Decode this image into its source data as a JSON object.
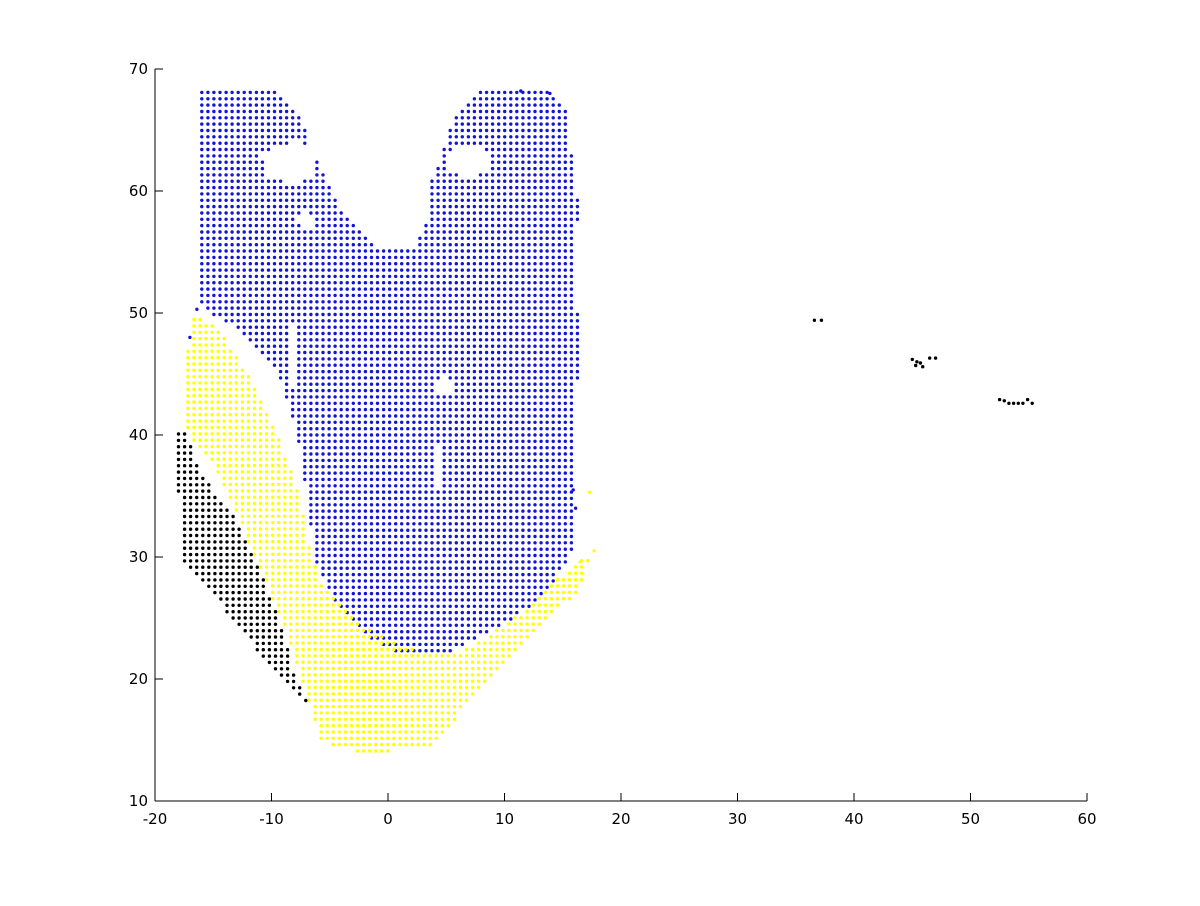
{
  "chart_data": {
    "type": "scatter",
    "title": "",
    "xlabel": "",
    "ylabel": "",
    "xlim": [
      -20,
      60
    ],
    "ylim": [
      10,
      70
    ],
    "grid": false,
    "legend": "none",
    "xticks": [
      -20,
      -10,
      0,
      10,
      20,
      30,
      40,
      50,
      60
    ],
    "yticks": [
      10,
      20,
      30,
      40,
      50,
      60,
      70
    ],
    "marker": "dot",
    "series": [
      {
        "color": "#1414d8",
        "region": {
          "outline": [
            [
              -16.3,
              68.2
            ],
            [
              -9.9,
              68.3
            ],
            [
              -7.9,
              66.5
            ],
            [
              -7.0,
              64.7
            ],
            [
              -5.4,
              61.1
            ],
            [
              -4.0,
              58.6
            ],
            [
              -2.3,
              56.7
            ],
            [
              -0.7,
              55.2
            ],
            [
              0.8,
              55.3
            ],
            [
              2.5,
              55.6
            ],
            [
              3.5,
              58.0
            ],
            [
              3.8,
              61.1
            ],
            [
              4.7,
              63.2
            ],
            [
              5.7,
              66.3
            ],
            [
              8.0,
              68.5
            ],
            [
              11.0,
              68.3
            ],
            [
              14.0,
              68.1
            ],
            [
              15.3,
              66.5
            ],
            [
              15.8,
              62.5
            ],
            [
              16.3,
              59.0
            ],
            [
              16.2,
              55.0
            ],
            [
              16.3,
              47.0
            ],
            [
              16.2,
              40.0
            ],
            [
              16.1,
              34.0
            ],
            [
              16.0,
              31.0
            ],
            [
              15.0,
              29.0
            ],
            [
              12.5,
              26.0
            ],
            [
              9.0,
              24.0
            ],
            [
              5.5,
              22.3
            ],
            [
              3.7,
              21.8
            ],
            [
              0.5,
              22.2
            ],
            [
              -2.0,
              23.5
            ],
            [
              -4.5,
              26.0
            ],
            [
              -6.3,
              30.0
            ],
            [
              -7.0,
              35.0
            ],
            [
              -7.8,
              40.0
            ],
            [
              -9.5,
              45.0
            ],
            [
              -12.0,
              48.0
            ],
            [
              -13.9,
              49.2
            ],
            [
              -16.0,
              50.5
            ],
            [
              -16.3,
              55.0
            ],
            [
              -16.5,
              62.0
            ]
          ],
          "holes": [
            [
              [
                -10.8,
                63.0
              ],
              [
                -8.0,
                64.2
              ],
              [
                -6.3,
                63.3
              ],
              [
                -6.2,
                61.5
              ],
              [
                -8.2,
                60.5
              ],
              [
                -10.6,
                61.3
              ]
            ],
            [
              [
                5.0,
                63.3
              ],
              [
                6.8,
                63.8
              ],
              [
                8.6,
                63.2
              ],
              [
                8.8,
                61.7
              ],
              [
                7.0,
                61.0
              ],
              [
                5.3,
                61.8
              ]
            ],
            [
              [
                -8.0,
                57.8
              ],
              [
                -7.0,
                58.3
              ],
              [
                -6.3,
                57.4
              ],
              [
                -7.1,
                56.7
              ]
            ],
            [
              [
                -8.4,
                48.8
              ],
              [
                -7.9,
                49.0
              ],
              [
                -7.7,
                42.2
              ],
              [
                -8.1,
                41.9
              ]
            ],
            [
              [
                4.1,
                44.6
              ],
              [
                5.3,
                44.9
              ],
              [
                5.5,
                43.5
              ],
              [
                4.3,
                43.2
              ]
            ],
            [
              [
                3.9,
                39.0
              ],
              [
                4.5,
                39.2
              ],
              [
                4.6,
                35.5
              ],
              [
                4.0,
                35.3
              ]
            ]
          ]
        },
        "points": [
          [
            -16.4,
            50.3
          ],
          [
            -17.0,
            48.0
          ],
          [
            15.9,
            35.5
          ],
          [
            16.1,
            34.0
          ],
          [
            13.9,
            68.0
          ],
          [
            11.4,
            68.2
          ]
        ]
      },
      {
        "color": "#ffff00",
        "region": {
          "outline": [
            [
              -17.7,
              42.3
            ],
            [
              -17.2,
              47.0
            ],
            [
              -16.8,
              50.0
            ],
            [
              -14.9,
              49.0
            ],
            [
              -12.6,
              46.0
            ],
            [
              -10.8,
              42.5
            ],
            [
              -9.3,
              39.5
            ],
            [
              -8.2,
              37.0
            ],
            [
              -7.2,
              33.0
            ],
            [
              -6.5,
              30.0
            ],
            [
              -5.5,
              27.5
            ],
            [
              -3.3,
              25.2
            ],
            [
              -0.5,
              23.5
            ],
            [
              2.5,
              22.3
            ],
            [
              5.5,
              22.0
            ],
            [
              8.5,
              23.5
            ],
            [
              11.5,
              25.5
            ],
            [
              13.7,
              27.5
            ],
            [
              16.2,
              29.5
            ],
            [
              17.7,
              30.5
            ],
            [
              16.2,
              27.0
            ],
            [
              13.0,
              24.5
            ],
            [
              10.0,
              21.5
            ],
            [
              7.5,
              19.0
            ],
            [
              5.3,
              16.0
            ],
            [
              3.7,
              14.5
            ],
            [
              0.4,
              14.1
            ],
            [
              -2.8,
              14.1
            ],
            [
              -5.8,
              14.8
            ],
            [
              -6.5,
              17.5
            ],
            [
              -7.5,
              20.0
            ],
            [
              -9.0,
              24.5
            ],
            [
              -11.0,
              29.0
            ],
            [
              -13.0,
              33.5
            ],
            [
              -15.0,
              37.5
            ],
            [
              -17.5,
              40.5
            ]
          ]
        },
        "points": [
          [
            17.3,
            35.3
          ],
          [
            17.7,
            30.5
          ],
          [
            16.5,
            29.6
          ]
        ]
      },
      {
        "color": "#000000",
        "region": {
          "outline": [
            [
              -18.2,
              40.5
            ],
            [
              -17.2,
              40.6
            ],
            [
              -16.5,
              37.8
            ],
            [
              -15.0,
              35.5
            ],
            [
              -13.0,
              33.0
            ],
            [
              -11.0,
              29.0
            ],
            [
              -9.4,
              25.0
            ],
            [
              -8.0,
              20.5
            ],
            [
              -6.5,
              17.5
            ],
            [
              -6.2,
              17.2
            ],
            [
              -8.3,
              19.0
            ],
            [
              -10.5,
              21.5
            ],
            [
              -13.0,
              24.5
            ],
            [
              -15.5,
              27.5
            ],
            [
              -17.7,
              29.7
            ],
            [
              -17.8,
              34.0
            ],
            [
              -18.5,
              37.5
            ]
          ]
        },
        "points": [
          [
            36.6,
            49.4
          ],
          [
            37.2,
            49.4
          ],
          [
            45.0,
            46.2
          ],
          [
            45.4,
            46.0
          ],
          [
            45.7,
            45.9
          ],
          [
            45.9,
            45.6
          ],
          [
            45.3,
            45.7
          ],
          [
            46.5,
            46.3
          ],
          [
            47.0,
            46.3
          ],
          [
            52.5,
            42.9
          ],
          [
            52.9,
            42.8
          ],
          [
            53.3,
            42.6
          ],
          [
            53.7,
            42.6
          ],
          [
            54.1,
            42.6
          ],
          [
            54.5,
            42.6
          ],
          [
            54.9,
            42.9
          ],
          [
            55.3,
            42.6
          ]
        ]
      }
    ]
  }
}
